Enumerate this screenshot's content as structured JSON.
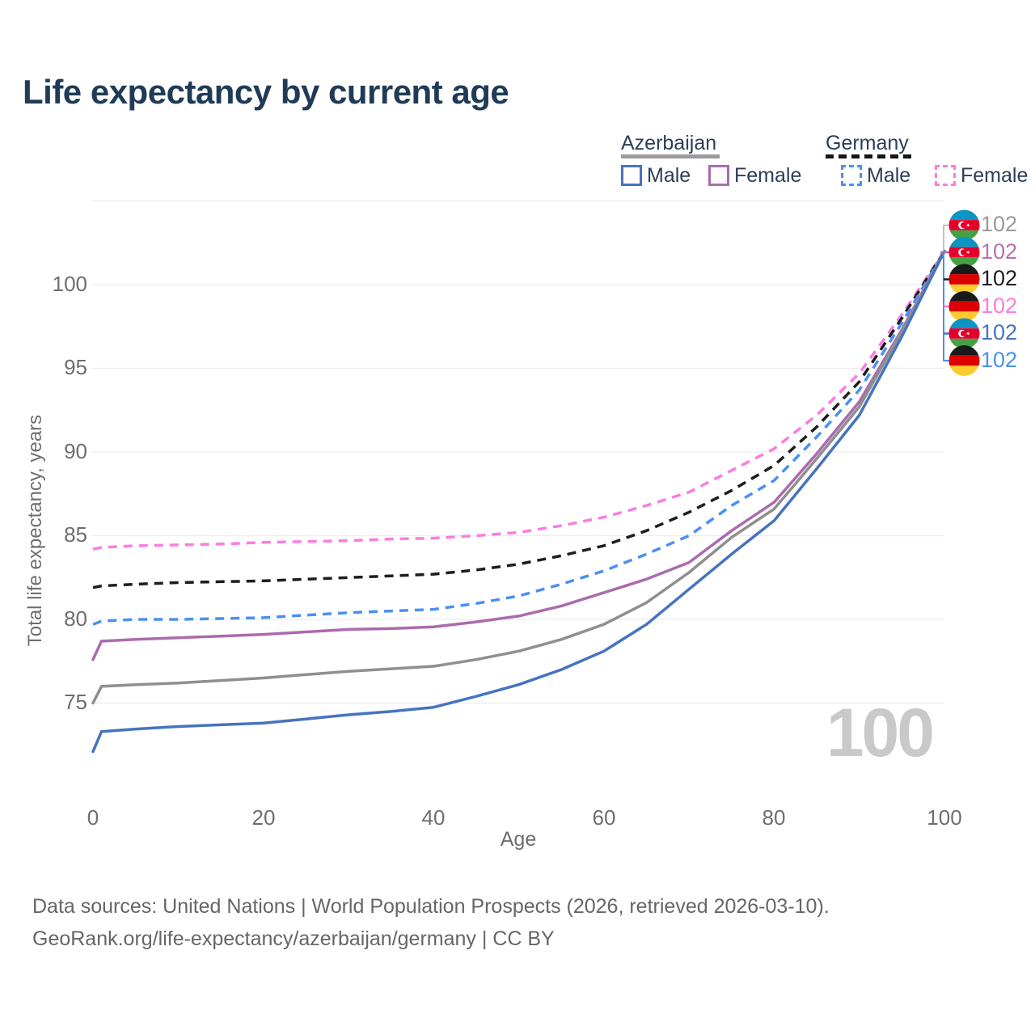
{
  "title": "Life expectancy by current age",
  "legend": {
    "groups": [
      {
        "label": "Azerbaijan",
        "line_style": "solid",
        "underline_color": "#9b9b9b",
        "items": [
          {
            "label": "Male",
            "color": "#4673c0"
          },
          {
            "label": "Female",
            "color": "#ab6bad"
          }
        ]
      },
      {
        "label": "Germany",
        "line_style": "dashed",
        "underline_color": "#161616",
        "items": [
          {
            "label": "Male",
            "color": "#4b8ff2"
          },
          {
            "label": "Female",
            "color": "#fb7ce1"
          }
        ]
      }
    ]
  },
  "chart_data": {
    "type": "line",
    "title": "Life expectancy by current age",
    "xlabel": "Age",
    "ylabel": "Total life expectancy, years",
    "xlim": [
      0,
      100
    ],
    "ylim": [
      71.5,
      105
    ],
    "x_ticks": [
      0,
      20,
      40,
      60,
      80,
      100
    ],
    "y_ticks": [
      75,
      80,
      85,
      90,
      95,
      100
    ],
    "y_gridlines": [
      75,
      80,
      85,
      90,
      95,
      100,
      105
    ],
    "grid": "horizontal-only",
    "legend_position": "top-right",
    "x": [
      0,
      1,
      5,
      10,
      15,
      20,
      25,
      30,
      35,
      40,
      45,
      50,
      55,
      60,
      65,
      70,
      75,
      80,
      85,
      90,
      95,
      100
    ],
    "series": [
      {
        "name": "Germany Female",
        "country": "Germany",
        "sex": "female",
        "color": "#fb7ce1",
        "dash": "dashed",
        "values": [
          84.2,
          84.3,
          84.4,
          84.45,
          84.5,
          84.6,
          84.65,
          84.7,
          84.8,
          84.85,
          85.0,
          85.2,
          85.6,
          86.1,
          86.8,
          87.6,
          88.9,
          90.2,
          92.2,
          94.7,
          98.2,
          102
        ]
      },
      {
        "name": "Germany Total",
        "country": "Germany",
        "sex": "total",
        "color": "#1d1d1d",
        "dash": "dashed",
        "values": [
          81.9,
          82.0,
          82.1,
          82.2,
          82.25,
          82.3,
          82.4,
          82.5,
          82.6,
          82.7,
          82.95,
          83.3,
          83.8,
          84.4,
          85.3,
          86.4,
          87.7,
          89.2,
          91.5,
          94.2,
          98.0,
          102
        ]
      },
      {
        "name": "Germany Male",
        "country": "Germany",
        "sex": "male",
        "color": "#4b8ff2",
        "dash": "dashed",
        "values": [
          79.7,
          79.9,
          80.0,
          80.0,
          80.05,
          80.1,
          80.25,
          80.4,
          80.5,
          80.6,
          80.95,
          81.4,
          82.1,
          82.9,
          83.9,
          85.0,
          86.8,
          88.3,
          90.9,
          93.7,
          97.7,
          102
        ]
      },
      {
        "name": "Azerbaijan Female",
        "country": "Azerbaijan",
        "sex": "female",
        "color": "#ab6bad",
        "dash": "solid",
        "values": [
          77.6,
          78.7,
          78.8,
          78.9,
          79.0,
          79.1,
          79.25,
          79.4,
          79.45,
          79.55,
          79.85,
          80.2,
          80.8,
          81.6,
          82.4,
          83.4,
          85.3,
          87.0,
          89.9,
          93.0,
          97.3,
          102
        ]
      },
      {
        "name": "Azerbaijan Total",
        "country": "Azerbaijan",
        "sex": "total",
        "color": "#8f8f8f",
        "dash": "solid",
        "values": [
          75.0,
          76.0,
          76.1,
          76.2,
          76.35,
          76.5,
          76.7,
          76.9,
          77.05,
          77.2,
          77.6,
          78.1,
          78.8,
          79.7,
          81.0,
          82.8,
          84.9,
          86.6,
          89.6,
          92.7,
          97.2,
          102
        ]
      },
      {
        "name": "Azerbaijan Male",
        "country": "Azerbaijan",
        "sex": "male",
        "color": "#4673c0",
        "dash": "solid",
        "values": [
          72.1,
          73.3,
          73.45,
          73.6,
          73.7,
          73.8,
          74.05,
          74.3,
          74.5,
          74.75,
          75.4,
          76.1,
          77.0,
          78.1,
          79.7,
          81.8,
          83.9,
          85.9,
          89.0,
          92.2,
          96.9,
          102
        ]
      }
    ],
    "end_labels": [
      {
        "series": "Azerbaijan Total",
        "flag": "Azerbaijan",
        "value": "102",
        "color": "#9a9a9a"
      },
      {
        "series": "Azerbaijan Female",
        "flag": "Azerbaijan",
        "value": "102",
        "color": "#b573ae"
      },
      {
        "series": "Germany Total",
        "flag": "Germany",
        "value": "102",
        "color": "#1d1d1d"
      },
      {
        "series": "Germany Female",
        "flag": "Germany",
        "value": "102",
        "color": "#fb7ce1"
      },
      {
        "series": "Azerbaijan Male",
        "flag": "Azerbaijan",
        "value": "102",
        "color": "#4673c0"
      },
      {
        "series": "Germany Male",
        "flag": "Germany",
        "value": "102",
        "color": "#4b8ff2"
      }
    ]
  },
  "watermark": "100",
  "footer": {
    "line1": "Data sources: United Nations | World Population Prospects (2026, retrieved 2026-03-10).",
    "line2": "GeoRank.org/life-expectancy/azerbaijan/germany | CC BY"
  }
}
